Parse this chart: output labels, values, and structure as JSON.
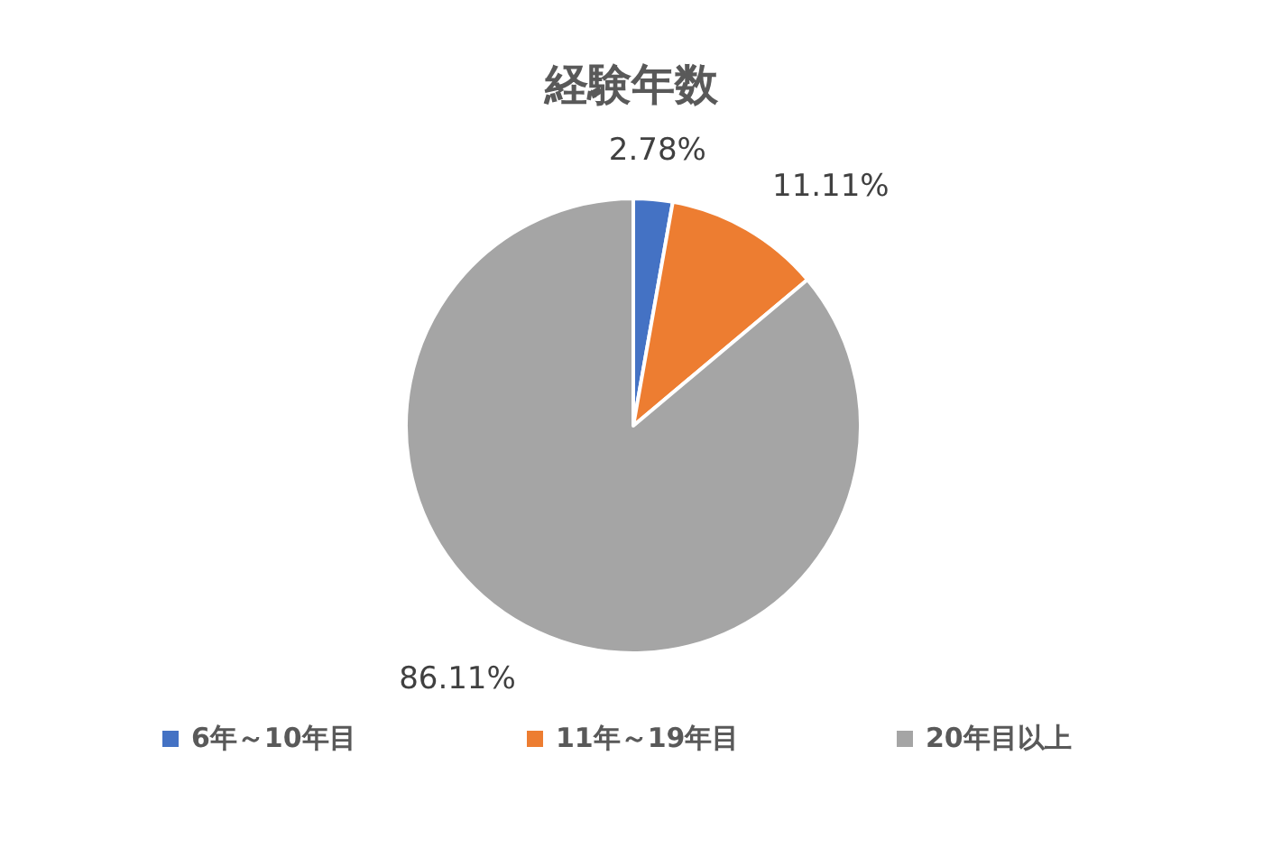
{
  "chart_data": {
    "type": "pie",
    "title": "経験年数",
    "categories": [
      "6年～10年目",
      "11年～19年目",
      "20年目以上"
    ],
    "values": [
      2.78,
      11.11,
      86.11
    ],
    "colors": [
      "#4472c4",
      "#ed7d31",
      "#a5a5a5"
    ],
    "value_labels": [
      "2.78%",
      "11.11%",
      "86.11%"
    ],
    "legend": "bottom"
  }
}
